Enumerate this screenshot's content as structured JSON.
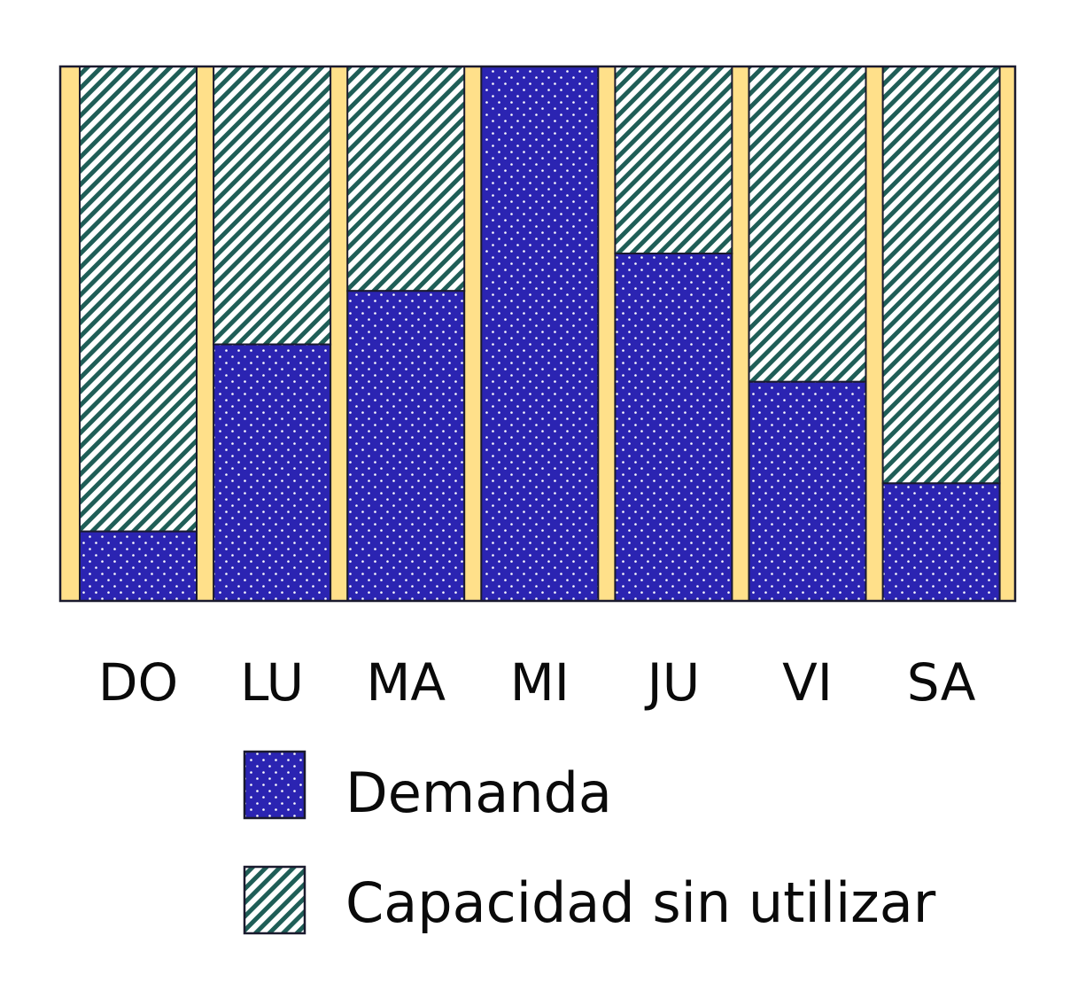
{
  "chart_data": {
    "type": "bar",
    "stacked": true,
    "categories": [
      "DO",
      "LU",
      "MA",
      "MI",
      "JU",
      "VI",
      "SA"
    ],
    "ylim": [
      0,
      100
    ],
    "series": [
      {
        "name": "Demanda",
        "values": [
          13,
          48,
          58,
          100,
          65,
          41,
          22
        ],
        "pattern": "dots",
        "color": "#2b24b2"
      },
      {
        "name": "Capacidad sin utilizar",
        "values": [
          87,
          52,
          42,
          0,
          35,
          59,
          78
        ],
        "pattern": "diagonal-stripes",
        "color": "#1f5e57"
      }
    ],
    "legend_placement": "bottom-center",
    "grid": false,
    "colors": {
      "gap": "#ffe08a",
      "border": "#1a1a2e",
      "demand": "#2b24b2",
      "unused": "#1f5e57",
      "text": "#0a0a0a"
    }
  }
}
